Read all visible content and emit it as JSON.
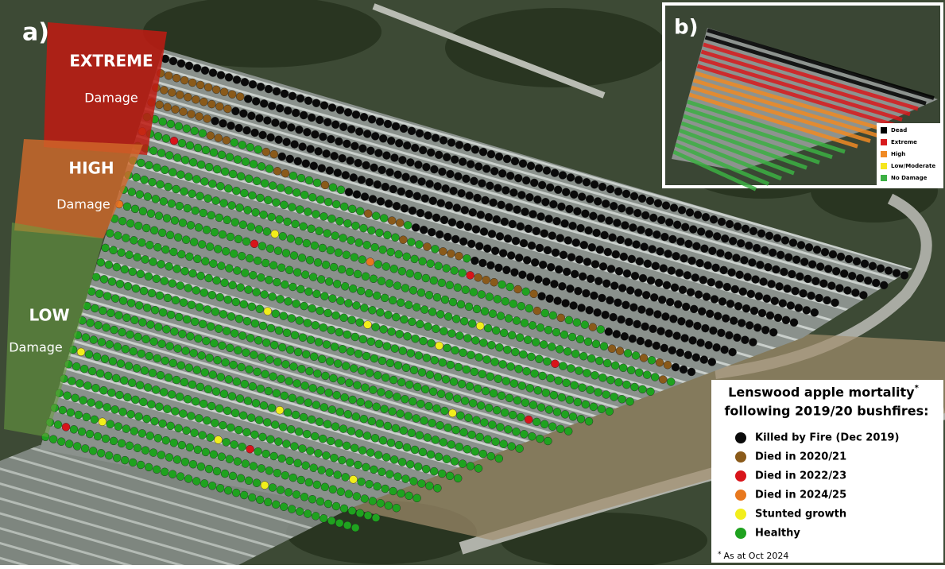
{
  "panel_a": {
    "label": "a)",
    "zones": [
      {
        "level": "EXTREME",
        "note": "Damage"
      },
      {
        "level": "HIGH",
        "note": "Damage"
      },
      {
        "level": "LOW",
        "note": "Damage"
      }
    ]
  },
  "panel_b": {
    "label": "b)",
    "legend": [
      {
        "label": "Dead",
        "color": "#000000"
      },
      {
        "label": "Extreme",
        "color": "#d7191c"
      },
      {
        "label": "High",
        "color": "#f08a24"
      },
      {
        "label": "Low/Moderate",
        "color": "#f5e61e"
      },
      {
        "label": "No Damage",
        "color": "#3cb043"
      }
    ]
  },
  "legend": {
    "title": "Lenswood apple mortality",
    "title_mark": "*",
    "subtitle": "following 2019/20 bushfires:",
    "items": [
      {
        "label": "Killed by Fire (Dec 2019)",
        "color": "#0a0a0a"
      },
      {
        "label": "Died in 2020/21",
        "color": "#8a5a1a"
      },
      {
        "label": "Died in 2022/23",
        "color": "#d8141a"
      },
      {
        "label": "Died in 2024/25",
        "color": "#e8781e"
      },
      {
        "label": "Stunted growth",
        "color": "#f2ee1c"
      },
      {
        "label": "Healthy",
        "color": "#1fa21f"
      }
    ],
    "footnote_mark": "*",
    "footnote": "As at Oct 2024"
  }
}
